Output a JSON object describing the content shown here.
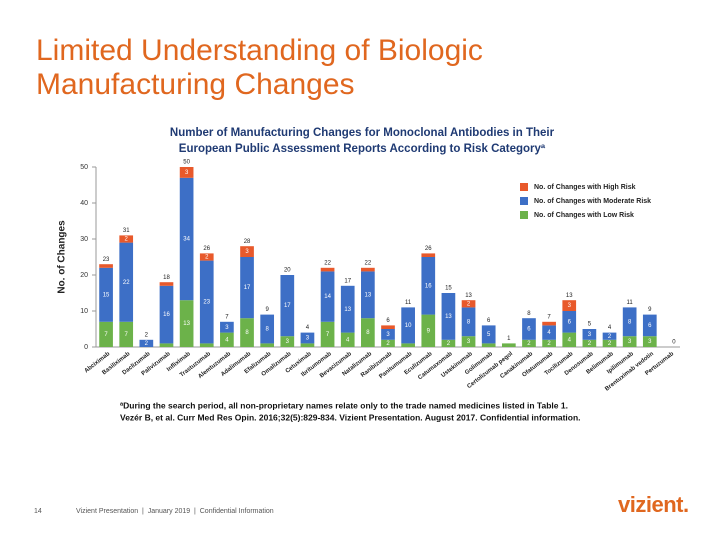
{
  "slide_title": [
    "Limited Understanding of Biologic",
    "Manufacturing Changes"
  ],
  "footer": {
    "page": "14",
    "text": "Vizient Presentation  |  January 2019  |  Confidential Information",
    "logo": "vizient."
  },
  "chart_data": {
    "type": "stacked_bar",
    "title": [
      "Number of Manufacturing Changes for Monoclonal Antibodies in Their",
      "European Public Assessment Reports According to Risk Categoryª"
    ],
    "y_label": "No. of Changes",
    "categories": [
      "Abciximab",
      "Basiliximab",
      "Daclizumab",
      "Palivizumab",
      "Infliximab",
      "Trastuzumab",
      "Alemtuzumab",
      "Adalimumab",
      "Efalizumab",
      "Omalizumab",
      "Cetuximab",
      "Ibritumomab",
      "Bevacizumab",
      "Natalizumab",
      "Ranibizumab",
      "Panitumumab",
      "Eculizumab",
      "Catumaxomab",
      "Ustekinumab",
      "Golimumab",
      "Certolizumab pegol",
      "Canakinumab",
      "Ofatumumab",
      "Tocilizumab",
      "Denosumab",
      "Belimumab",
      "Ipilimumab",
      "Brentuximab vedotin",
      "Pertuzumab"
    ],
    "series": [
      {
        "name": "No. of Changes with Low Risk",
        "color": "#6cb24a",
        "values": [
          7,
          7,
          0,
          1,
          13,
          1,
          4,
          8,
          1,
          3,
          1,
          7,
          4,
          8,
          2,
          1,
          9,
          2,
          3,
          1,
          1,
          2,
          2,
          4,
          2,
          2,
          3,
          3,
          0
        ]
      },
      {
        "name": "No. of Changes with Moderate Risk",
        "color": "#3d6fc6",
        "values": [
          15,
          22,
          2,
          16,
          34,
          23,
          3,
          17,
          8,
          17,
          3,
          14,
          13,
          13,
          3,
          10,
          16,
          13,
          8,
          5,
          0,
          6,
          4,
          6,
          3,
          2,
          8,
          6,
          0
        ]
      },
      {
        "name": "No. of Changes with High Risk",
        "color": "#e8592b",
        "values": [
          1,
          2,
          0,
          1,
          3,
          2,
          0,
          3,
          0,
          0,
          0,
          1,
          0,
          1,
          1,
          0,
          1,
          0,
          2,
          0,
          0,
          0,
          1,
          3,
          0,
          0,
          0,
          0,
          0
        ]
      }
    ],
    "totals": [
      23,
      31,
      2,
      18,
      50,
      26,
      7,
      28,
      9,
      20,
      4,
      22,
      17,
      22,
      6,
      11,
      26,
      15,
      13,
      6,
      1,
      8,
      7,
      13,
      5,
      4,
      11,
      9,
      0
    ],
    "ylim": [
      0,
      50
    ],
    "yticks": [
      0,
      10,
      20,
      30,
      40,
      50
    ],
    "legend": "top-right",
    "footnotes": [
      "ªDuring the search period, all non-proprietary names relate only to the trade named medicines listed in Table 1.",
      "Vezér B, et al. Curr Med Res Opin. 2016;32(5):829-834. Vizient Presentation. August 2017. Confidential information."
    ]
  }
}
